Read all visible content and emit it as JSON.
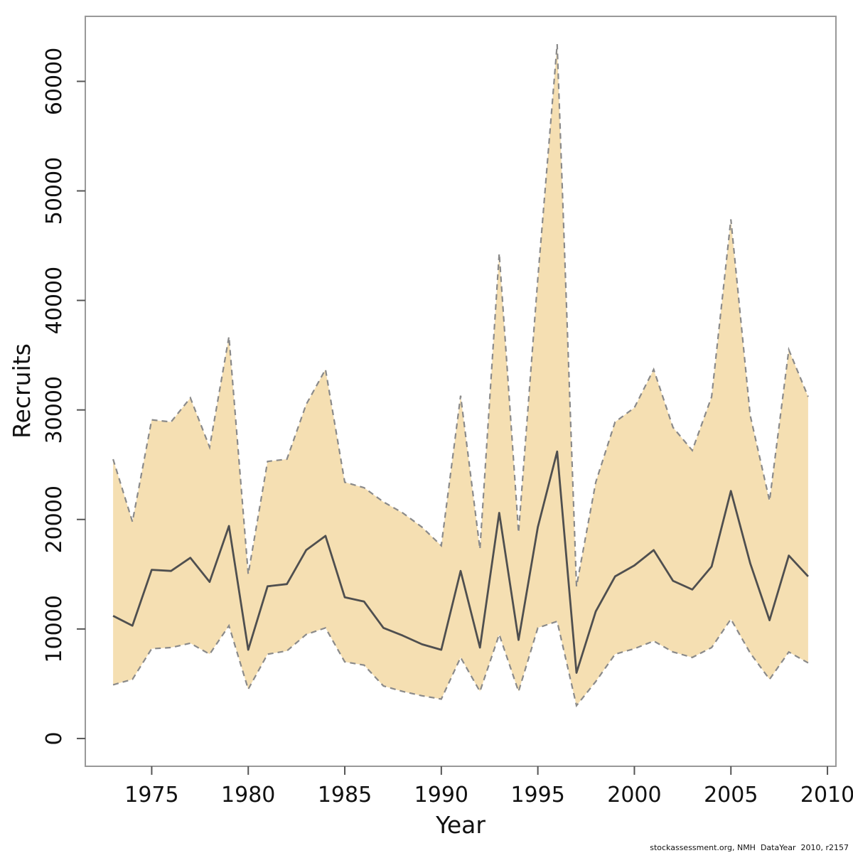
{
  "page": {
    "background": "#ffffff"
  },
  "footer": {
    "watermark": "stockassessment.org, NMH  DataYear  2010, r2157"
  },
  "chart_data": {
    "type": "line",
    "title": "",
    "xlabel": "Year",
    "ylabel": "Recruits",
    "grid": false,
    "legend": null,
    "xlim": [
      1971.56,
      2010.44
    ],
    "ylim": [
      -2536,
      65936
    ],
    "x_ticks": [
      1975,
      1980,
      1985,
      1990,
      1995,
      2000,
      2005,
      2010
    ],
    "y_ticks": [
      0,
      10000,
      20000,
      30000,
      40000,
      50000,
      60000
    ],
    "colors": {
      "band_fill": "#f5dfb2",
      "band_edge": "#8a8a8a",
      "estimate_line": "#4f4f4f",
      "plot_border": "#999999",
      "tick_mark": "#555555"
    },
    "x": [
      1973,
      1974,
      1975,
      1976,
      1977,
      1978,
      1979,
      1980,
      1981,
      1982,
      1983,
      1984,
      1985,
      1986,
      1987,
      1988,
      1989,
      1990,
      1991,
      1992,
      1993,
      1994,
      1995,
      1996,
      1997,
      1998,
      1999,
      2000,
      2001,
      2002,
      2003,
      2004,
      2005,
      2006,
      2007,
      2008,
      2009
    ],
    "series": [
      {
        "name": "recruits_estimate",
        "values": [
          11200,
          10300,
          15400,
          15300,
          16500,
          14300,
          19400,
          8100,
          13900,
          14100,
          17200,
          18500,
          12900,
          12500,
          10100,
          9400,
          8600,
          8100,
          15300,
          8300,
          20600,
          9000,
          19300,
          26200,
          6000,
          11600,
          14800,
          15800,
          17200,
          14400,
          13600,
          15700,
          22600,
          16000,
          10800,
          16700,
          14800
        ]
      },
      {
        "name": "ci_lower",
        "values": [
          4900,
          5400,
          8200,
          8300,
          8700,
          7700,
          10300,
          4500,
          7700,
          8000,
          9500,
          10100,
          7000,
          6700,
          4800,
          4300,
          3900,
          3600,
          7400,
          4300,
          9500,
          4300,
          10100,
          10700,
          3000,
          5200,
          7700,
          8200,
          8900,
          7900,
          7400,
          8300,
          10900,
          7800,
          5400,
          7900,
          6900
        ]
      },
      {
        "name": "ci_upper",
        "values": [
          25500,
          19800,
          29100,
          28900,
          31100,
          26600,
          36700,
          15000,
          25300,
          25500,
          30500,
          33700,
          23400,
          22900,
          21600,
          20600,
          19300,
          17600,
          31300,
          17300,
          44300,
          18800,
          42000,
          63400,
          13900,
          23400,
          28900,
          30200,
          33700,
          28400,
          26300,
          31200,
          47400,
          29500,
          21700,
          35500,
          31200
        ]
      }
    ]
  }
}
